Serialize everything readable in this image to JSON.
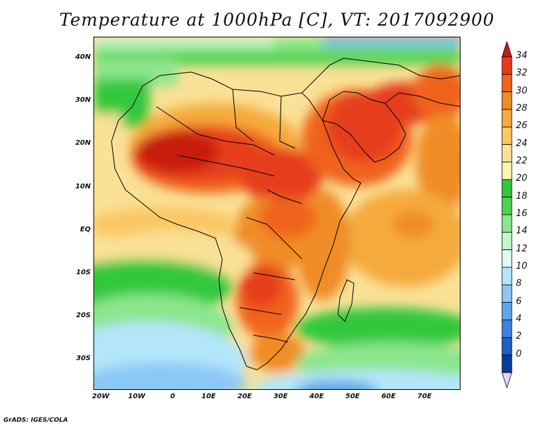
{
  "title": "Temperature at 1000hPa [C], VT: 2017092900",
  "credit": "GrADS: IGES/COLA",
  "map": {
    "lon_range": [
      -22,
      80
    ],
    "lat_range": [
      -37,
      45
    ],
    "lat_ticks": [
      {
        "value": 40,
        "label": "40N"
      },
      {
        "value": 30,
        "label": "30N"
      },
      {
        "value": 20,
        "label": "20N"
      },
      {
        "value": 10,
        "label": "10N"
      },
      {
        "value": 0,
        "label": "EQ"
      },
      {
        "value": -10,
        "label": "10S"
      },
      {
        "value": -20,
        "label": "20S"
      },
      {
        "value": -30,
        "label": "30S"
      }
    ],
    "lon_ticks": [
      {
        "value": -20,
        "label": "20W"
      },
      {
        "value": -10,
        "label": "10W"
      },
      {
        "value": 0,
        "label": "0"
      },
      {
        "value": 10,
        "label": "10E"
      },
      {
        "value": 20,
        "label": "20E"
      },
      {
        "value": 30,
        "label": "30E"
      },
      {
        "value": 40,
        "label": "40E"
      },
      {
        "value": 50,
        "label": "50E"
      },
      {
        "value": 60,
        "label": "60E"
      },
      {
        "value": 70,
        "label": "70E"
      }
    ]
  },
  "colorbar": {
    "levels": [
      "34",
      "32",
      "30",
      "28",
      "26",
      "24",
      "22",
      "20",
      "18",
      "16",
      "14",
      "12",
      "10",
      "8",
      "6",
      "4",
      "2",
      "0"
    ],
    "colors": [
      "#c81e0f",
      "#e63c1e",
      "#f0641e",
      "#f08c28",
      "#f5aa3c",
      "#fac864",
      "#fae196",
      "#f5f5b4",
      "#32c83c",
      "#50d250",
      "#8ce68c",
      "#c3f5c8",
      "#e1fafa",
      "#b4e6fa",
      "#8cc8f5",
      "#5fa5eb",
      "#3c82e1",
      "#1e5fc8",
      "#0a3ca0",
      "#0a0a78"
    ]
  }
}
